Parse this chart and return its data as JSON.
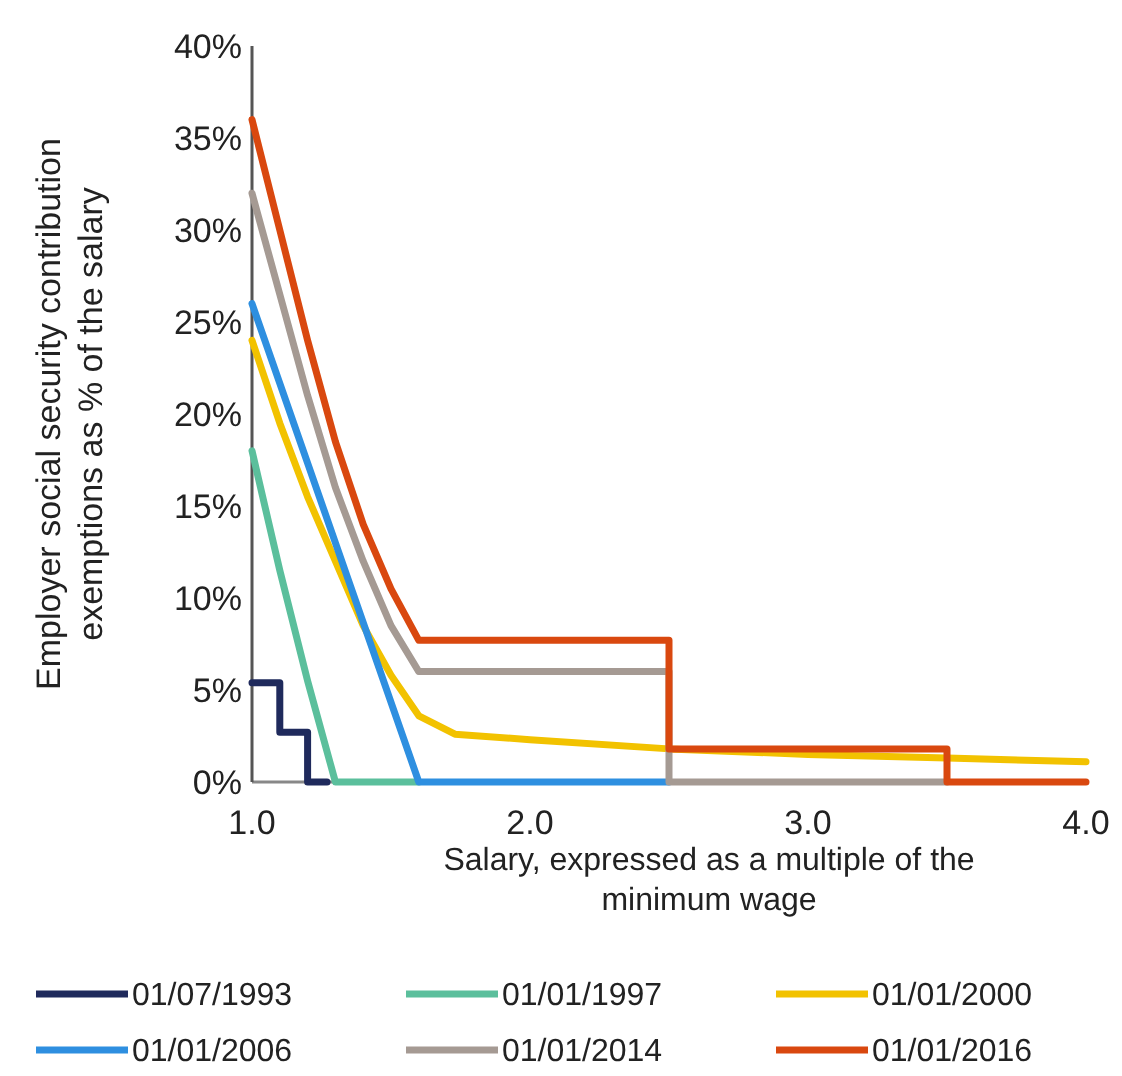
{
  "chart_data": {
    "type": "line",
    "ylabel": "Employer social security contribution exemptions as % of the salary",
    "xlabel": "Salary, expressed as a multiple of the minimum wage",
    "xlim": [
      1,
      4
    ],
    "ylim": [
      0,
      40
    ],
    "xticks": [
      {
        "value": 1,
        "label": "1.0"
      },
      {
        "value": 2,
        "label": "2.0"
      },
      {
        "value": 3,
        "label": "3.0"
      },
      {
        "value": 4,
        "label": "4.0"
      }
    ],
    "yticks": [
      {
        "value": 0,
        "label": "0%"
      },
      {
        "value": 5,
        "label": "5%"
      },
      {
        "value": 10,
        "label": "10%"
      },
      {
        "value": 15,
        "label": "15%"
      },
      {
        "value": 20,
        "label": "20%"
      },
      {
        "value": 25,
        "label": "25%"
      },
      {
        "value": 30,
        "label": "30%"
      },
      {
        "value": 35,
        "label": "35%"
      },
      {
        "value": 40,
        "label": "40%"
      }
    ],
    "grid": false,
    "legend": "bottom",
    "marker": "none",
    "line_style": "solid",
    "series": [
      {
        "name": "01/07/1993",
        "color": "#1f2a5c",
        "x": [
          1,
          1.1,
          1.1,
          1.2,
          1.2,
          1.27
        ],
        "values": [
          5.4,
          5.4,
          2.7,
          2.7,
          0,
          0
        ]
      },
      {
        "name": "01/01/1997",
        "color": "#5bbf9c",
        "x": [
          1,
          1.1,
          1.2,
          1.3,
          1.6
        ],
        "values": [
          18,
          11.5,
          5.5,
          0,
          0
        ]
      },
      {
        "name": "01/01/2000",
        "color": "#f2c200",
        "x": [
          1,
          1.1,
          1.2,
          1.3,
          1.4,
          1.5,
          1.6,
          1.73,
          2,
          2.5,
          3,
          3.5,
          4
        ],
        "values": [
          24,
          19.5,
          15.5,
          12,
          8.5,
          5.8,
          3.6,
          2.6,
          2.3,
          1.8,
          1.5,
          1.3,
          1.1
        ]
      },
      {
        "name": "01/01/2006",
        "color": "#2e8fe0",
        "x": [
          1,
          1.6,
          2.5
        ],
        "values": [
          26,
          0,
          0
        ]
      },
      {
        "name": "01/01/2014",
        "color": "#a59a93",
        "x": [
          1,
          1.1,
          1.2,
          1.3,
          1.4,
          1.5,
          1.6,
          2.5,
          2.5,
          3.5
        ],
        "values": [
          32,
          26.5,
          21,
          16,
          12,
          8.5,
          6,
          6,
          0,
          0
        ]
      },
      {
        "name": "01/01/2016",
        "color": "#d9480f",
        "x": [
          1,
          1.1,
          1.2,
          1.3,
          1.4,
          1.5,
          1.6,
          2.5,
          2.5,
          3.5,
          3.5,
          4
        ],
        "values": [
          36,
          30,
          24,
          18.5,
          14,
          10.5,
          7.7,
          7.7,
          1.8,
          1.8,
          0,
          0
        ]
      }
    ]
  }
}
